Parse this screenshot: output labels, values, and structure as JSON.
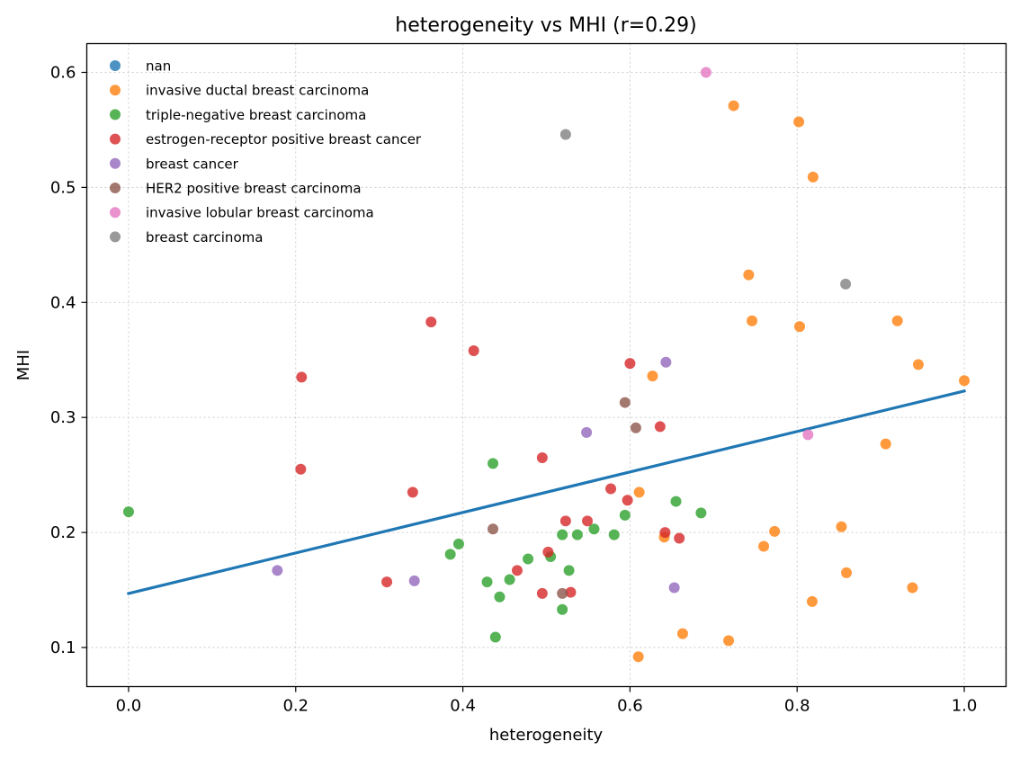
{
  "chart_data": {
    "type": "scatter",
    "title": "heterogeneity vs MHI  (r=0.29)",
    "xlabel": "heterogeneity",
    "ylabel": "MHI",
    "xlim": [
      -0.05,
      1.05
    ],
    "ylim": [
      0.066,
      0.625
    ],
    "xticks": [
      0.0,
      0.2,
      0.4,
      0.6,
      0.8,
      1.0
    ],
    "xtick_labels": [
      "0.0",
      "0.2",
      "0.4",
      "0.6",
      "0.8",
      "1.0"
    ],
    "yticks": [
      0.1,
      0.2,
      0.3,
      0.4,
      0.5,
      0.6
    ],
    "ytick_labels": [
      "0.1",
      "0.2",
      "0.3",
      "0.4",
      "0.5",
      "0.6"
    ],
    "grid": true,
    "legend_position": "top-left",
    "trend_line": {
      "color": "#1f77b4",
      "points": [
        [
          0.0,
          0.147
        ],
        [
          1.0,
          0.323
        ]
      ]
    },
    "series": [
      {
        "name": "nan",
        "color": "#1f77b4",
        "points": []
      },
      {
        "name": "invasive ductal breast carcinoma",
        "color": "#ff7f0e",
        "points": [
          [
            0.724,
            0.571
          ],
          [
            0.802,
            0.557
          ],
          [
            0.819,
            0.509
          ],
          [
            0.742,
            0.424
          ],
          [
            0.746,
            0.384
          ],
          [
            0.803,
            0.379
          ],
          [
            0.92,
            0.384
          ],
          [
            0.945,
            0.346
          ],
          [
            1.0,
            0.332
          ],
          [
            0.627,
            0.336
          ],
          [
            0.906,
            0.277
          ],
          [
            0.611,
            0.235
          ],
          [
            0.773,
            0.201
          ],
          [
            0.853,
            0.205
          ],
          [
            0.641,
            0.196
          ],
          [
            0.76,
            0.188
          ],
          [
            0.859,
            0.165
          ],
          [
            0.818,
            0.14
          ],
          [
            0.938,
            0.152
          ],
          [
            0.663,
            0.112
          ],
          [
            0.718,
            0.106
          ],
          [
            0.61,
            0.092
          ]
        ]
      },
      {
        "name": "triple-negative breast carcinoma",
        "color": "#2ca02c",
        "points": [
          [
            0.0,
            0.218
          ],
          [
            0.436,
            0.26
          ],
          [
            0.395,
            0.19
          ],
          [
            0.385,
            0.181
          ],
          [
            0.429,
            0.157
          ],
          [
            0.444,
            0.144
          ],
          [
            0.456,
            0.159
          ],
          [
            0.478,
            0.177
          ],
          [
            0.505,
            0.179
          ],
          [
            0.519,
            0.198
          ],
          [
            0.537,
            0.198
          ],
          [
            0.557,
            0.203
          ],
          [
            0.581,
            0.198
          ],
          [
            0.594,
            0.215
          ],
          [
            0.655,
            0.227
          ],
          [
            0.685,
            0.217
          ],
          [
            0.527,
            0.167
          ],
          [
            0.519,
            0.133
          ],
          [
            0.439,
            0.109
          ]
        ]
      },
      {
        "name": "estrogen-receptor positive breast cancer",
        "color": "#d62728",
        "points": [
          [
            0.362,
            0.383
          ],
          [
            0.413,
            0.358
          ],
          [
            0.207,
            0.335
          ],
          [
            0.6,
            0.347
          ],
          [
            0.636,
            0.292
          ],
          [
            0.206,
            0.255
          ],
          [
            0.495,
            0.265
          ],
          [
            0.34,
            0.235
          ],
          [
            0.577,
            0.238
          ],
          [
            0.597,
            0.228
          ],
          [
            0.523,
            0.21
          ],
          [
            0.549,
            0.21
          ],
          [
            0.642,
            0.2
          ],
          [
            0.659,
            0.195
          ],
          [
            0.502,
            0.183
          ],
          [
            0.465,
            0.167
          ],
          [
            0.309,
            0.157
          ],
          [
            0.495,
            0.147
          ],
          [
            0.529,
            0.148
          ]
        ]
      },
      {
        "name": "breast cancer",
        "color": "#9467bd",
        "points": [
          [
            0.643,
            0.348
          ],
          [
            0.548,
            0.287
          ],
          [
            0.178,
            0.167
          ],
          [
            0.342,
            0.158
          ],
          [
            0.653,
            0.152
          ]
        ]
      },
      {
        "name": "HER2 positive breast carcinoma",
        "color": "#8c564b",
        "points": [
          [
            0.594,
            0.313
          ],
          [
            0.607,
            0.291
          ],
          [
            0.436,
            0.203
          ],
          [
            0.519,
            0.147
          ]
        ]
      },
      {
        "name": "invasive lobular breast carcinoma",
        "color": "#e377c2",
        "points": [
          [
            0.691,
            0.6
          ],
          [
            0.813,
            0.285
          ]
        ]
      },
      {
        "name": "breast carcinoma",
        "color": "#7f7f7f",
        "points": [
          [
            0.523,
            0.546
          ],
          [
            0.858,
            0.416
          ]
        ]
      }
    ]
  }
}
